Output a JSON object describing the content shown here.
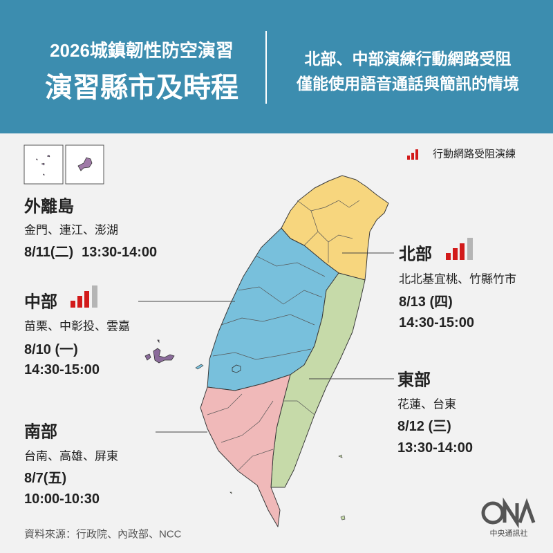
{
  "header": {
    "title_line1": "2026城鎮韌性防空演習",
    "title_line2": "演習縣市及時程",
    "subtitle_line1": "北部、中部演練行動網路受阻",
    "subtitle_line2": "僅能使用語音通話與簡訊的情境"
  },
  "legend": {
    "label": "行動網路受阻演練"
  },
  "regions": [
    {
      "name": "外離島",
      "areas": "金門、連江、澎湖",
      "date": "8/11(二)",
      "time": "13:30-14:00"
    },
    {
      "name": "北部",
      "areas": "北北基宜桃、竹縣竹市",
      "date": "8/13 (四)",
      "time": "14:30-15:00"
    },
    {
      "name": "中部",
      "areas": "苗栗、中彰投、雲嘉",
      "date": "8/10 (一)",
      "time": "14:30-15:00"
    },
    {
      "name": "東部",
      "areas": "花蓮、台東",
      "date": "8/12 (三)",
      "time": "13:30-14:00"
    },
    {
      "name": "南部",
      "areas": "台南、高雄、屏東",
      "date": "8/7(五)",
      "time": "10:00-10:30"
    }
  ],
  "source": "資料來源：行政院、內政部、NCC",
  "logo": {
    "text": "中央通訊社"
  }
}
